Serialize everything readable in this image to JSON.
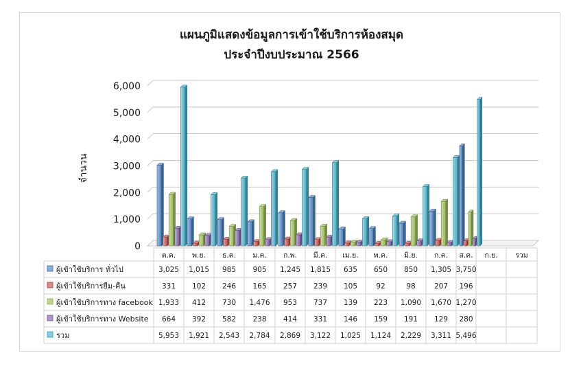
{
  "chart_data": {
    "type": "bar",
    "title": "แผนภูมิแสดงข้อมูลการเข้าใช้บริการห้องสมุด",
    "subtitle": "ประจำปีงบประมาณ 2566",
    "xlabel": "",
    "ylabel": "จำนวน",
    "ylim": [
      0,
      6000
    ],
    "yticks": [
      "0",
      "1,000",
      "2,000",
      "3,000",
      "4,000",
      "5,000",
      "6,000"
    ],
    "ytick_values": [
      0,
      1000,
      2000,
      3000,
      4000,
      5000,
      6000
    ],
    "grid": true,
    "legend": "bottom-table",
    "categories": [
      "ต.ค.",
      "พ.ย.",
      "ธ.ค.",
      "ม.ค.",
      "ก.พ.",
      "มี.ค.",
      "เม.ย.",
      "พ.ค.",
      "มิ.ย.",
      "ก.ค.",
      "ส.ค.",
      "ก.ย.",
      "รวม"
    ],
    "series": [
      {
        "name": "ผู้เข้าใช้บริการ ทั่วไป",
        "color": "#4f81bd",
        "values": [
          3025,
          1015,
          985,
          905,
          1245,
          1815,
          635,
          650,
          850,
          1305,
          3750,
          null,
          null
        ],
        "labels": [
          "3,025",
          "1,015",
          "985",
          "905",
          "1,245",
          "1,815",
          "635",
          "650",
          "850",
          "1,305",
          "3,750",
          "",
          ""
        ]
      },
      {
        "name": "ผู้เข้าใช้บริการยืม-คืน",
        "color": "#c0504d",
        "values": [
          331,
          102,
          246,
          165,
          257,
          239,
          105,
          92,
          98,
          207,
          196,
          null,
          null
        ],
        "labels": [
          "331",
          "102",
          "246",
          "165",
          "257",
          "239",
          "105",
          "92",
          "98",
          "207",
          "196",
          "",
          ""
        ]
      },
      {
        "name": "ผู้เข้าใช้บริการทาง facebook",
        "color": "#9bbb59",
        "values": [
          1933,
          412,
          730,
          1476,
          953,
          737,
          139,
          223,
          1090,
          1670,
          1270,
          null,
          null
        ],
        "labels": [
          "1,933",
          "412",
          "730",
          "1,476",
          "953",
          "737",
          "139",
          "223",
          "1,090",
          "1,670",
          "1,270",
          "",
          ""
        ]
      },
      {
        "name": "ผู้เข้าใช้บริการทาง Website",
        "color": "#8064a2",
        "values": [
          664,
          392,
          582,
          238,
          414,
          331,
          146,
          159,
          191,
          129,
          280,
          null,
          null
        ],
        "labels": [
          "664",
          "392",
          "582",
          "238",
          "414",
          "331",
          "146",
          "159",
          "191",
          "129",
          "280",
          "",
          ""
        ]
      },
      {
        "name": "รวม",
        "color": "#4bacc6",
        "values": [
          5953,
          1921,
          2543,
          2784,
          2869,
          3122,
          1025,
          1124,
          2229,
          3311,
          5496,
          null,
          null
        ],
        "labels": [
          "5,953",
          "1,921",
          "2,543",
          "2,784",
          "2,869",
          "3,122",
          "1,025",
          "1,124",
          "2,229",
          "3,311",
          "5,496",
          "",
          ""
        ]
      }
    ]
  }
}
